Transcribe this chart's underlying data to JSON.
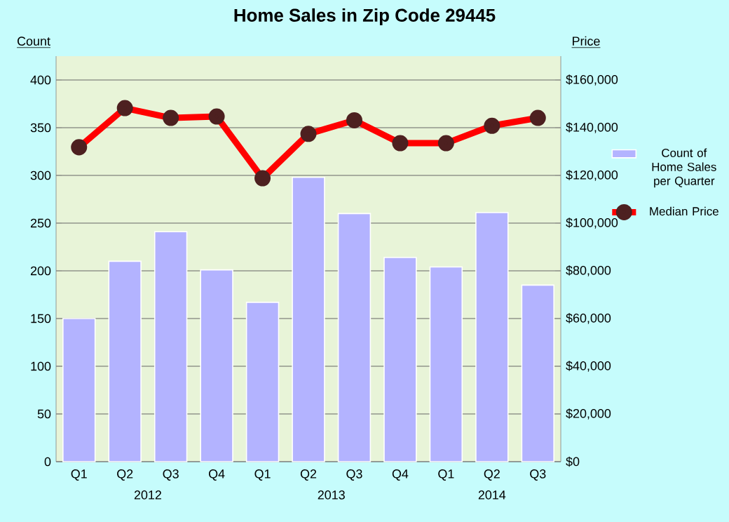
{
  "chart_data": {
    "type": "bar",
    "title": "Home Sales in Zip Code 29445",
    "ylabel": "Count",
    "y2label": "Price",
    "categories": [
      "Q1",
      "Q2",
      "Q3",
      "Q4",
      "Q1",
      "Q2",
      "Q3",
      "Q4",
      "Q1",
      "Q2",
      "Q3"
    ],
    "annotations": [
      "2012",
      "2013",
      "2014"
    ],
    "series": [
      {
        "name": "Count of Home Sales per Quarter",
        "color": "#b3b3ff",
        "values": [
          150,
          210,
          241,
          201,
          167,
          298,
          260,
          214,
          204,
          261,
          185
        ]
      },
      {
        "name": "Median Price",
        "type": "line",
        "axis": "y2",
        "color": "#ff0000",
        "values": [
          131800,
          148200,
          144100,
          144700,
          118800,
          137400,
          143100,
          133500,
          133500,
          140800,
          144100
        ]
      }
    ],
    "ylim": [
      0,
      425
    ],
    "yticks": [
      0,
      50,
      100,
      150,
      200,
      250,
      300,
      350,
      400
    ],
    "y2lim": [
      0,
      170000
    ],
    "y2ticks": [
      {
        "value": 0,
        "label": "$0"
      },
      {
        "value": 20000,
        "label": "$20,000"
      },
      {
        "value": 40000,
        "label": "$40,000"
      },
      {
        "value": 60000,
        "label": "$60,000"
      },
      {
        "value": 80000,
        "label": "$80,000"
      },
      {
        "value": 100000,
        "label": "$100,000"
      },
      {
        "value": 120000,
        "label": "$120,000"
      },
      {
        "value": 140000,
        "label": "$140,000"
      },
      {
        "value": 160000,
        "label": "$160,000"
      }
    ],
    "grid": "y",
    "legend": "right",
    "marker": "circle",
    "line_style": "solid"
  }
}
